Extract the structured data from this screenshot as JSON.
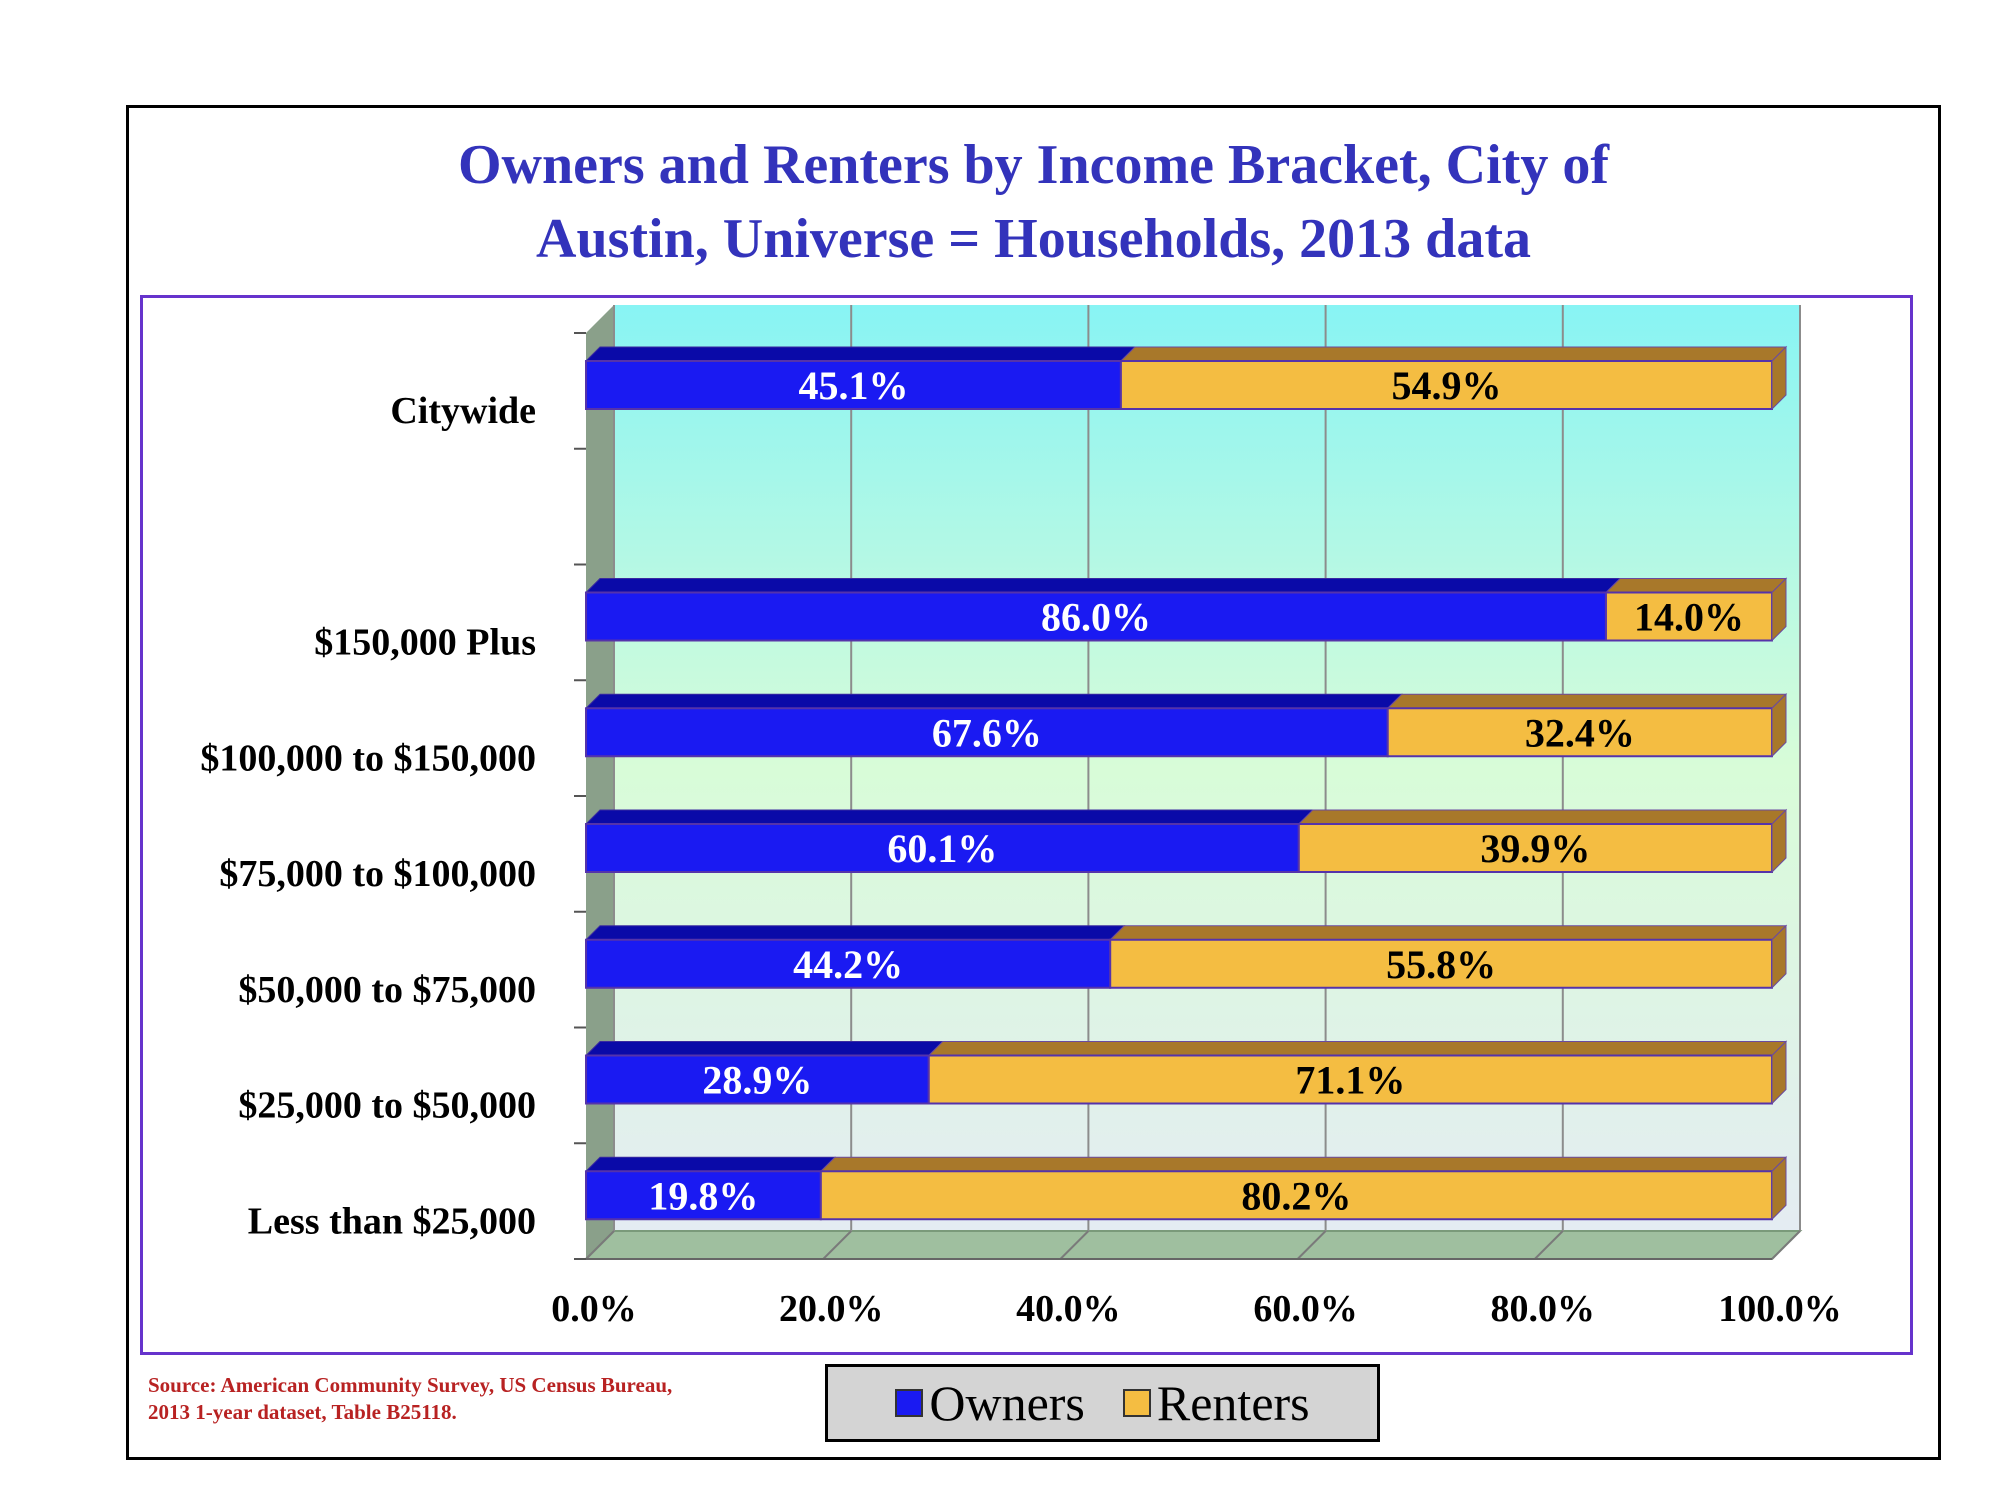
{
  "chart_data": {
    "type": "bar",
    "orientation": "horizontal",
    "stacked": "percent",
    "title": "Owners and Renters by Income Bracket, City of Austin, Universe = Households, 2013 data",
    "title_lines": [
      "Owners and Renters by Income Bracket, City of",
      "Austin, Universe = Households, 2013 data"
    ],
    "categories": [
      "Citywide",
      "",
      "$150,000 Plus",
      "$100,000 to $150,000",
      "$75,000 to $100,000",
      "$50,000 to $75,000",
      "$25,000 to $50,000",
      "Less than $25,000"
    ],
    "series": [
      {
        "name": "Owners",
        "color": "#1a1af2",
        "values": [
          45.1,
          null,
          86.0,
          67.6,
          60.1,
          44.2,
          28.9,
          19.8
        ],
        "labels": [
          "45.1%",
          "",
          "86.0%",
          "67.6%",
          "60.1%",
          "44.2%",
          "28.9%",
          "19.8%"
        ]
      },
      {
        "name": "Renters",
        "color": "#f4bd42",
        "values": [
          54.9,
          null,
          14.0,
          32.4,
          39.9,
          55.8,
          71.1,
          80.2
        ],
        "labels": [
          "54.9%",
          "",
          "14.0%",
          "32.4%",
          "39.9%",
          "55.8%",
          "71.1%",
          "80.2%"
        ]
      }
    ],
    "xlabel": "",
    "ylabel": "",
    "xlim": [
      0,
      100
    ],
    "xticks": [
      0,
      20,
      40,
      60,
      80,
      100
    ],
    "xtick_labels": [
      "0.0%",
      "20.0%",
      "40.0%",
      "60.0%",
      "80.0%",
      "100.0%"
    ],
    "grid": true,
    "legend_position": "bottom-center",
    "source_lines": [
      "Source: American Community Survey, US Census Bureau,",
      "2013 1-year dataset, Table B25118."
    ]
  },
  "colors": {
    "title": "#3333bb",
    "owners": "#1a1af2",
    "renters": "#f4bd42",
    "wall_top": "#88f4f4",
    "wall_bottom": "#e4ecf2",
    "side_wall": "#8aa08a",
    "floor": "#9fbf9f",
    "source": "#b82222"
  }
}
